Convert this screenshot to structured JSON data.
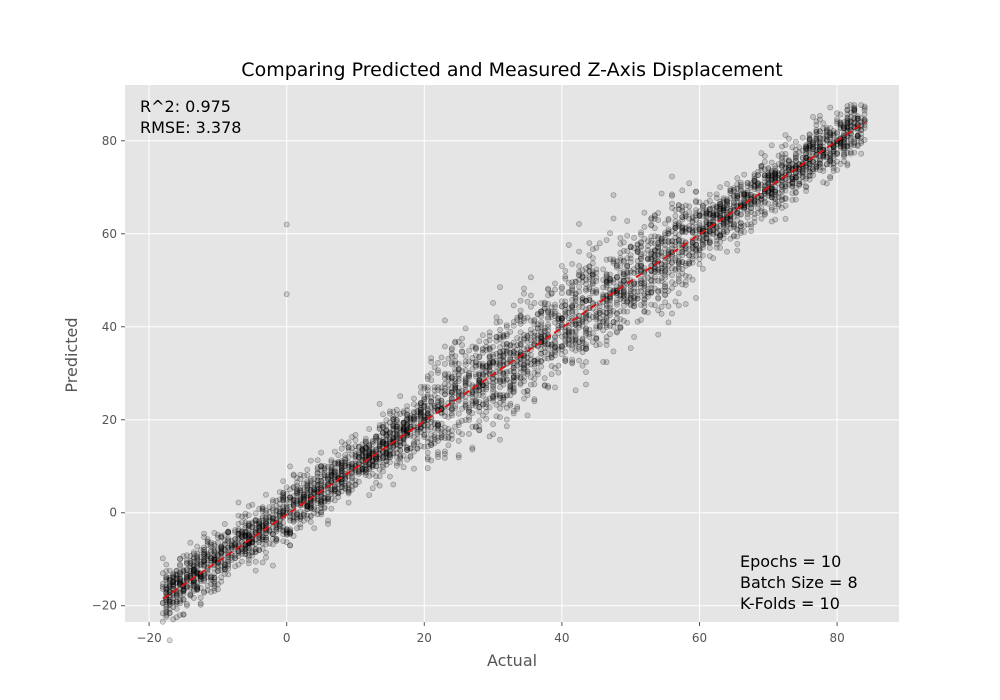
{
  "chart_data": {
    "type": "scatter",
    "title": "Comparing Predicted and Measured Z-Axis Displacement",
    "xlabel": "Actual",
    "ylabel": "Predicted",
    "xlim": [
      -23.5,
      89
    ],
    "ylim": [
      -23.5,
      92
    ],
    "xticks": [
      -20,
      0,
      20,
      40,
      60,
      80
    ],
    "yticks": [
      -20,
      0,
      20,
      40,
      60,
      80
    ],
    "xtick_labels": [
      "−20",
      "0",
      "20",
      "40",
      "60",
      "80"
    ],
    "ytick_labels": [
      "−20",
      "0",
      "20",
      "40",
      "60",
      "80"
    ],
    "grid": true,
    "background": "#e5e5e5",
    "point_color": "#000000",
    "reference_line": {
      "x": [
        -18,
        84
      ],
      "y": [
        -18.5,
        84
      ],
      "color": "#e01010",
      "style": "dashed"
    },
    "stats": {
      "r2_text": "R^2: 0.975",
      "rmse_text": "RMSE: 3.378"
    },
    "training_info": [
      "Epochs = 10",
      "Batch Size = 8",
      "K-Folds = 10"
    ],
    "series": [
      {
        "x": [
          -18,
          -16,
          -14,
          -12,
          -10,
          -8,
          -6,
          -4,
          -2,
          0,
          0,
          0,
          2,
          4,
          6,
          8,
          10,
          12,
          14,
          16,
          18,
          20,
          22,
          24,
          26,
          28,
          30,
          32,
          34,
          36,
          38,
          40,
          42,
          44,
          46,
          48,
          50,
          52,
          54,
          56,
          58,
          60,
          62,
          64,
          66,
          68,
          70,
          72,
          74,
          76,
          78,
          80,
          82,
          84,
          84
        ],
        "y": [
          -13,
          -14,
          -12,
          -10,
          -9,
          -7,
          -5,
          -3,
          -2,
          0,
          62,
          47,
          2,
          4,
          6,
          8,
          10,
          12,
          14,
          16,
          18,
          20,
          22,
          24,
          26,
          28,
          30,
          32,
          34,
          36,
          38,
          40,
          42,
          44,
          46,
          48,
          50,
          52,
          54,
          56,
          58,
          60,
          62,
          64,
          66,
          68,
          70,
          72,
          74,
          76,
          78,
          80,
          82,
          84,
          87
        ]
      }
    ]
  }
}
